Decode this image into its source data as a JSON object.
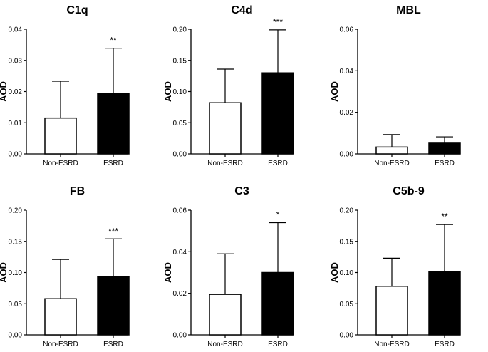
{
  "chart_data": [
    {
      "type": "bar",
      "title": "C1q",
      "ylabel": "AOD",
      "xlabel": "",
      "categories": [
        "Non-ESRD",
        "ESRD"
      ],
      "values": [
        0.0115,
        0.0193
      ],
      "errors": [
        0.0118,
        0.0146
      ],
      "fill_colors": [
        "#ffffff",
        "#000000"
      ],
      "ylim": [
        0,
        0.04
      ],
      "yticks": [
        "0.00",
        "0.01",
        "0.02",
        "0.03",
        "0.04"
      ],
      "significance": "**"
    },
    {
      "type": "bar",
      "title": "C4d",
      "ylabel": "AOD",
      "xlabel": "",
      "categories": [
        "Non-ESRD",
        "ESRD"
      ],
      "values": [
        0.082,
        0.13
      ],
      "errors": [
        0.054,
        0.069
      ],
      "fill_colors": [
        "#ffffff",
        "#000000"
      ],
      "ylim": [
        0,
        0.2
      ],
      "yticks": [
        "0.00",
        "0.05",
        "0.10",
        "0.15",
        "0.20"
      ],
      "significance": "***"
    },
    {
      "type": "bar",
      "title": "MBL",
      "ylabel": "AOD",
      "xlabel": "",
      "categories": [
        "Non-ESRD",
        "ESRD"
      ],
      "values": [
        0.0033,
        0.0055
      ],
      "errors": [
        0.006,
        0.0027
      ],
      "fill_colors": [
        "#ffffff",
        "#000000"
      ],
      "ylim": [
        0,
        0.06
      ],
      "yticks": [
        "0.00",
        "0.02",
        "0.04",
        "0.06"
      ],
      "significance": ""
    },
    {
      "type": "bar",
      "title": "FB",
      "ylabel": "AOD",
      "xlabel": "",
      "categories": [
        "Non-ESRD",
        "ESRD"
      ],
      "values": [
        0.058,
        0.093
      ],
      "errors": [
        0.063,
        0.061
      ],
      "fill_colors": [
        "#ffffff",
        "#000000"
      ],
      "ylim": [
        0,
        0.2
      ],
      "yticks": [
        "0.00",
        "0.05",
        "0.10",
        "0.15",
        "0.20"
      ],
      "significance": "***"
    },
    {
      "type": "bar",
      "title": "C3",
      "ylabel": "AOD",
      "xlabel": "",
      "categories": [
        "Non-ESRD",
        "ESRD"
      ],
      "values": [
        0.0195,
        0.03
      ],
      "errors": [
        0.0195,
        0.024
      ],
      "fill_colors": [
        "#ffffff",
        "#000000"
      ],
      "ylim": [
        0,
        0.06
      ],
      "yticks": [
        "0.00",
        "0.02",
        "0.04",
        "0.06"
      ],
      "significance": "*"
    },
    {
      "type": "bar",
      "title": "C5b-9",
      "ylabel": "AOD",
      "xlabel": "",
      "categories": [
        "Non-ESRD",
        "ESRD"
      ],
      "values": [
        0.078,
        0.102
      ],
      "errors": [
        0.045,
        0.075
      ],
      "fill_colors": [
        "#ffffff",
        "#000000"
      ],
      "ylim": [
        0,
        0.2
      ],
      "yticks": [
        "0.00",
        "0.05",
        "0.10",
        "0.15",
        "0.20"
      ],
      "significance": "**"
    }
  ]
}
